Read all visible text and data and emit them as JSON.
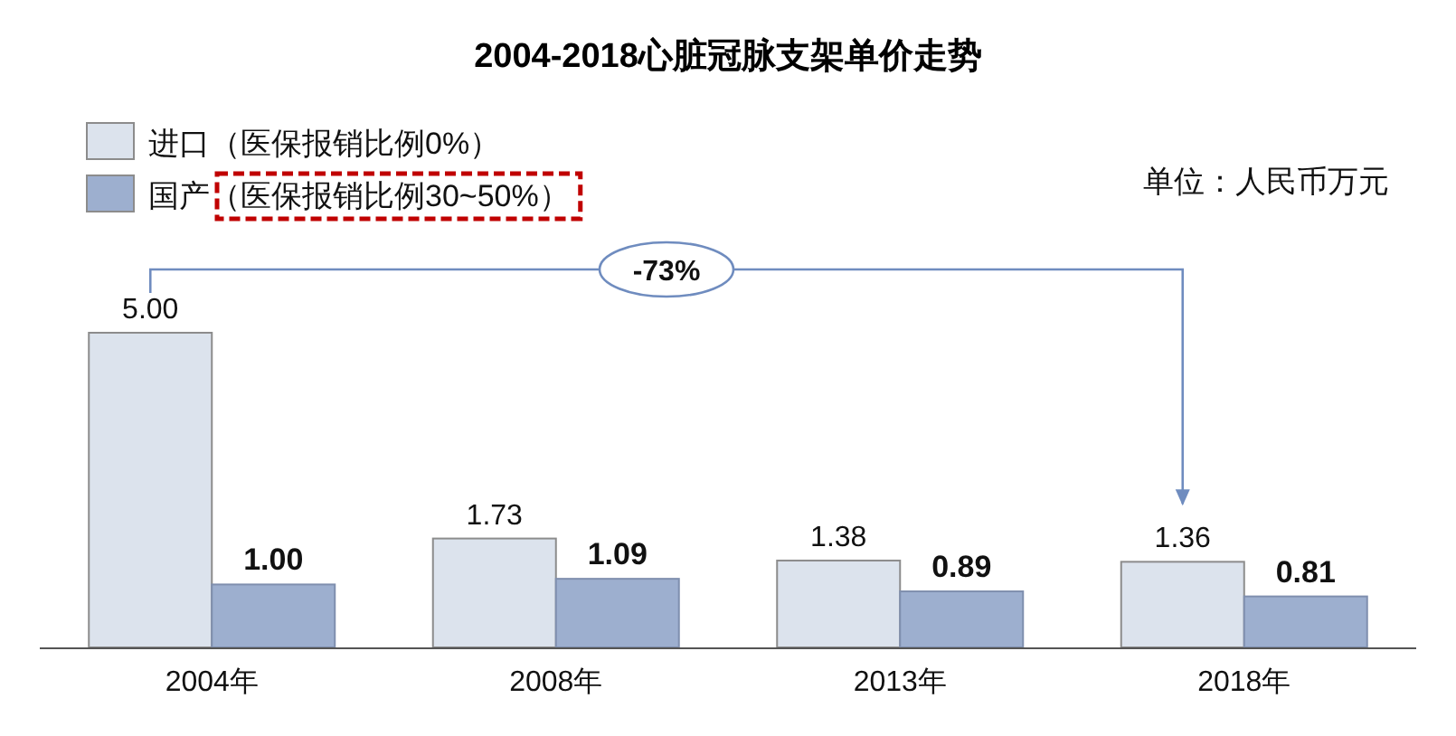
{
  "chart_data": {
    "type": "bar",
    "title": "2004-2018心脏冠脉支架单价走势",
    "categories": [
      "2004年",
      "2008年",
      "2013年",
      "2018年"
    ],
    "series": [
      {
        "name": "进口（医保报销比例0%）",
        "color": "#dce3ed",
        "values": [
          5.0,
          1.73,
          1.38,
          1.36
        ],
        "value_labels": [
          "5.00",
          "1.73",
          "1.38",
          "1.36"
        ]
      },
      {
        "name": "国产（医保报销比例30~50%）",
        "color": "#9dafcf",
        "values": [
          1.0,
          1.09,
          0.89,
          0.81
        ],
        "value_labels": [
          "1.00",
          "1.09",
          "0.89",
          "0.81"
        ]
      }
    ],
    "legend": "top left",
    "annotations": [
      "单位：人民币万元",
      "-73%"
    ]
  }
}
